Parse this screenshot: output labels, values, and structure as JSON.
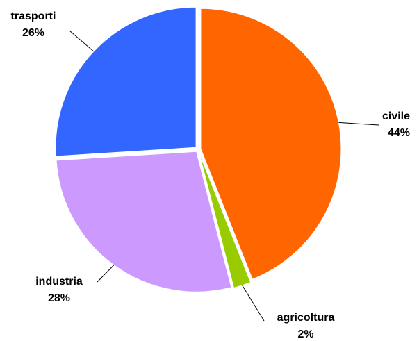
{
  "chart_data": {
    "type": "pie",
    "categories": [
      "civile",
      "agricoltura",
      "industria",
      "trasporti"
    ],
    "values": [
      44,
      2,
      28,
      26
    ],
    "value_labels": [
      "44%",
      "2%",
      "28%",
      "26%"
    ],
    "colors": [
      "#ff6600",
      "#99cc00",
      "#cc99ff",
      "#3366ff"
    ]
  }
}
